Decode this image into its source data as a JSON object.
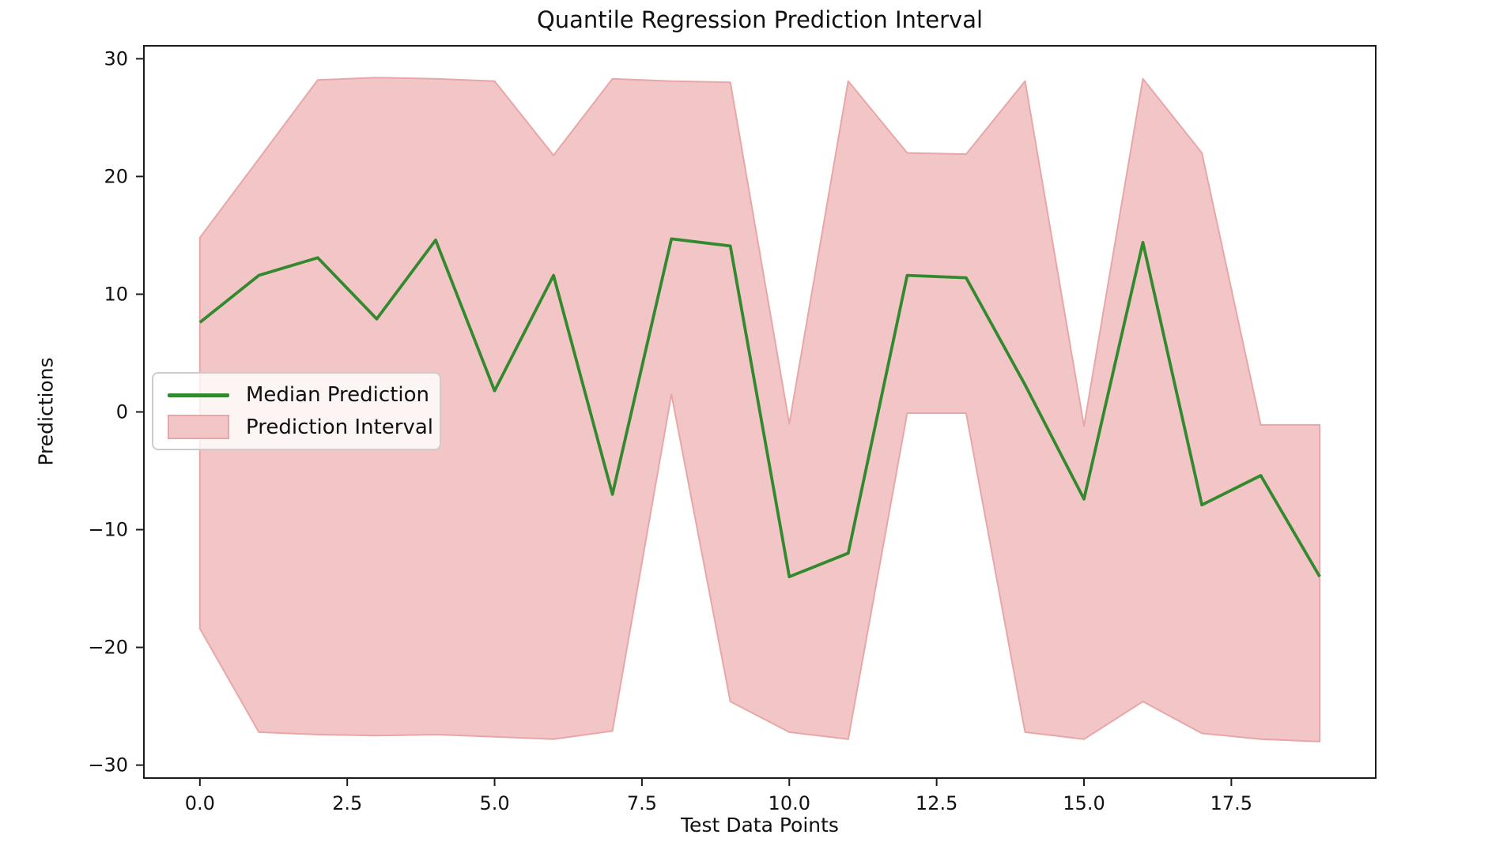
{
  "chart_data": {
    "type": "line",
    "title": "Quantile Regression Prediction Interval",
    "xlabel": "Test Data Points",
    "ylabel": "Predictions",
    "grid": false,
    "x": [
      0,
      1,
      2,
      3,
      4,
      5,
      6,
      7,
      8,
      9,
      10,
      11,
      12,
      13,
      14,
      15,
      16,
      17,
      18,
      19
    ],
    "series": [
      {
        "name": "Median Prediction",
        "kind": "line",
        "color": "#338a2e",
        "values": [
          7.6,
          11.6,
          13.1,
          7.9,
          14.6,
          1.8,
          11.6,
          -7.0,
          14.7,
          14.1,
          -14.0,
          -12.0,
          11.6,
          11.4,
          2.3,
          -7.4,
          14.4,
          -7.9,
          -5.4,
          -14.0
        ]
      },
      {
        "name": "Prediction Interval",
        "kind": "band",
        "fill_color": "#f2c6c6",
        "edge_color": "#e9a6a6",
        "upper": [
          14.8,
          21.5,
          28.2,
          28.4,
          28.3,
          28.1,
          21.8,
          28.3,
          28.1,
          28.0,
          -1.0,
          28.1,
          22.0,
          21.9,
          28.1,
          -1.2,
          28.3,
          22.0,
          -1.1,
          -1.1
        ],
        "lower": [
          -18.4,
          -27.2,
          -27.4,
          -27.5,
          -27.4,
          -27.6,
          -27.8,
          -27.1,
          1.5,
          -24.6,
          -27.2,
          -27.8,
          -0.1,
          -0.1,
          -27.2,
          -27.8,
          -24.6,
          -27.3,
          -27.8,
          -28.0
        ]
      }
    ],
    "xlim": [
      -0.95,
      19.95
    ],
    "ylim": [
      -31.1,
      31.1
    ],
    "x_ticks": {
      "values": [
        0,
        2.5,
        5,
        7.5,
        10,
        12.5,
        15,
        17.5
      ],
      "labels": [
        "0.0",
        "2.5",
        "5.0",
        "7.5",
        "10.0",
        "12.5",
        "15.0",
        "17.5"
      ]
    },
    "y_ticks": {
      "values": [
        30,
        20,
        10,
        0,
        -10,
        -20,
        -30
      ],
      "labels": [
        "30",
        "20",
        "10",
        "0",
        "−10",
        "−20",
        "−30"
      ]
    },
    "legend": {
      "position": "center-left",
      "entries": [
        {
          "label": "Median Prediction",
          "swatch": "line",
          "color": "#338a2e"
        },
        {
          "label": "Prediction Interval",
          "swatch": "patch",
          "color": "#f2c6c6"
        }
      ]
    },
    "colors": {
      "median_line": "#338a2e",
      "band_fill": "#f2c6c6",
      "band_edge": "#e9a6a6",
      "spine": "#1c1c1c"
    }
  }
}
